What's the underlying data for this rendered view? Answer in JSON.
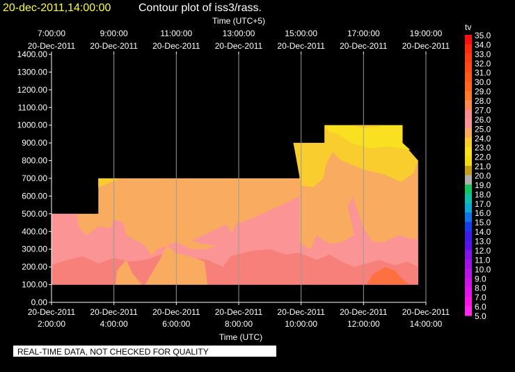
{
  "header": {
    "timestamp": "20-dec-2011,14:00:00",
    "title": "Contour plot of iss3/rass.",
    "timestamp_color": "#ffff33",
    "title_color": "#ffffff"
  },
  "top_axis": {
    "label": "Time (UTC+5)",
    "ticks": [
      {
        "hour": 7,
        "time": "7:00:00",
        "date": "20-Dec-2011"
      },
      {
        "hour": 9,
        "time": "9:00:00",
        "date": "20-Dec-2011"
      },
      {
        "hour": 11,
        "time": "11:00:00",
        "date": "20-Dec-2011"
      },
      {
        "hour": 13,
        "time": "13:00:00",
        "date": "20-Dec-2011"
      },
      {
        "hour": 15,
        "time": "15:00:00",
        "date": "20-Dec-2011"
      },
      {
        "hour": 17,
        "time": "17:00:00",
        "date": "20-Dec-2011"
      },
      {
        "hour": 19,
        "time": "19:00:00",
        "date": "20-Dec-2011"
      }
    ]
  },
  "bottom_axis": {
    "label": "Time (UTC)",
    "ticks": [
      {
        "hour": 2,
        "date": "20-Dec-2011",
        "time": "2:00:00"
      },
      {
        "hour": 4,
        "date": "20-Dec-2011",
        "time": "4:00:00"
      },
      {
        "hour": 6,
        "date": "20-Dec-2011",
        "time": "6:00:00"
      },
      {
        "hour": 8,
        "date": "20-Dec-2011",
        "time": "8:00:00"
      },
      {
        "hour": 10,
        "date": "20-Dec-2011",
        "time": "10:00:00"
      },
      {
        "hour": 12,
        "date": "20-Dec-2011",
        "time": "12:00:00"
      },
      {
        "hour": 14,
        "date": "20-Dec-2011",
        "time": "14:00:00"
      }
    ]
  },
  "y_axis": {
    "ticks": [
      "0.00",
      "100.00",
      "200.00",
      "300.00",
      "400.00",
      "500.00",
      "600.00",
      "700.00",
      "800.00",
      "900.00",
      "1000.00",
      "1100.00",
      "1200.00",
      "1300.00",
      "1400.00"
    ]
  },
  "colorbar": {
    "label": "tv",
    "levels": [
      "35.0",
      "34.0",
      "33.0",
      "32.0",
      "31.0",
      "30.0",
      "29.0",
      "28.0",
      "27.0",
      "26.0",
      "25.0",
      "24.0",
      "23.0",
      "22.0",
      "21.0",
      "20.0",
      "19.0",
      "18.0",
      "17.0",
      "16.0",
      "15.0",
      "14.0",
      "13.0",
      "12.0",
      "11.0",
      "10.0",
      "9.0",
      "8.0",
      "7.0",
      "6.0",
      "5.0"
    ],
    "colors": [
      "#ff1010",
      "#ff2a10",
      "#ff3c14",
      "#ff4a18",
      "#ff5a1a",
      "#ff661f",
      "#ff7a2a",
      "#fb8a52",
      "#fb8c8c",
      "#fb9494",
      "#f9ac60",
      "#f9cd2e",
      "#f9e020",
      "#f2dc15",
      "#c4a018",
      "#b0b0b0",
      "#17c460",
      "#10c0a8",
      "#0fa8d2",
      "#0f72e8",
      "#1a3ce8",
      "#3c1ce8",
      "#5a14e8",
      "#8214e8",
      "#a014e8",
      "#b814e8",
      "#d014e8",
      "#e414e8",
      "#ff14e8",
      "#ff28ec"
    ]
  },
  "footer": {
    "notice": "REAL-TIME DATA, NOT CHECKED FOR QUALITY"
  },
  "chart_data": {
    "type": "heatmap",
    "title": "Contour plot of iss3/rass.",
    "timestamp": "20-dec-2011,14:00:00",
    "xlabel": "Time (UTC)",
    "xlabel_top": "Time (UTC+5)",
    "ylabel": "",
    "xlim_hours_utc": [
      2,
      14
    ],
    "ylim": [
      0,
      1400
    ],
    "grid": true,
    "colorbar_label": "tv",
    "colorbar_range": [
      5.0,
      35.0
    ],
    "colors": {
      "c23": "#f9e020",
      "c24": "#f9cd2e",
      "c25": "#f9ac60",
      "c26": "#fb9494",
      "c27": "#f7807a",
      "c28": "#ff7040"
    },
    "regions": [
      {
        "level": "c25",
        "points": [
          [
            2,
            100
          ],
          [
            2,
            500
          ],
          [
            3.5,
            500
          ],
          [
            3.5,
            700
          ],
          [
            9.95,
            700
          ],
          [
            9.95,
            800
          ],
          [
            9.75,
            900
          ],
          [
            10.75,
            900
          ],
          [
            10.75,
            1000
          ],
          [
            13.25,
            1000
          ],
          [
            13.25,
            900
          ],
          [
            13.75,
            800
          ],
          [
            13.75,
            100
          ]
        ]
      },
      {
        "level": "c26",
        "points": [
          [
            2,
            100
          ],
          [
            2,
            500
          ],
          [
            2.8,
            500
          ],
          [
            2.9,
            420
          ],
          [
            3.1,
            380
          ],
          [
            3.3,
            400
          ],
          [
            3.5,
            430
          ],
          [
            3.9,
            420
          ],
          [
            4.0,
            470
          ],
          [
            4.3,
            450
          ],
          [
            4.4,
            380
          ],
          [
            4.8,
            340
          ],
          [
            5.0,
            320
          ],
          [
            5.2,
            260
          ],
          [
            5.4,
            300
          ],
          [
            6.0,
            340
          ],
          [
            6.5,
            300
          ],
          [
            7.0,
            300
          ],
          [
            7.5,
            340
          ],
          [
            7.75,
            380
          ],
          [
            7.9,
            440
          ],
          [
            8.5,
            480
          ],
          [
            9.0,
            520
          ],
          [
            9.5,
            560
          ],
          [
            9.95,
            600
          ],
          [
            9.95,
            100
          ]
        ]
      },
      {
        "level": "c26",
        "points": [
          [
            9.95,
            100
          ],
          [
            9.95,
            340
          ],
          [
            10.3,
            300
          ],
          [
            10.5,
            380
          ],
          [
            10.9,
            330
          ],
          [
            11.3,
            340
          ],
          [
            11.7,
            380
          ],
          [
            11.5,
            540
          ],
          [
            11.65,
            600
          ],
          [
            12.0,
            420
          ],
          [
            12.3,
            340
          ],
          [
            12.7,
            340
          ],
          [
            13.1,
            380
          ],
          [
            13.5,
            360
          ],
          [
            13.75,
            360
          ],
          [
            13.75,
            100
          ]
        ]
      },
      {
        "level": "c27",
        "points": [
          [
            2,
            100
          ],
          [
            2,
            210
          ],
          [
            2.5,
            240
          ],
          [
            3.0,
            260
          ],
          [
            3.5,
            220
          ],
          [
            4.0,
            250
          ],
          [
            4.5,
            230
          ],
          [
            5.0,
            240
          ],
          [
            5.2,
            250
          ],
          [
            5.5,
            270
          ],
          [
            6.0,
            230
          ],
          [
            6.5,
            250
          ],
          [
            7.0,
            240
          ],
          [
            7.5,
            200
          ],
          [
            7.75,
            260
          ],
          [
            8.4,
            290
          ],
          [
            9.0,
            300
          ],
          [
            9.5,
            270
          ],
          [
            9.95,
            280
          ],
          [
            10.5,
            240
          ],
          [
            10.9,
            270
          ],
          [
            11.3,
            230
          ],
          [
            11.7,
            200
          ],
          [
            12.1,
            220
          ],
          [
            12.5,
            240
          ],
          [
            13.0,
            210
          ],
          [
            13.4,
            230
          ],
          [
            13.75,
            200
          ],
          [
            13.75,
            100
          ]
        ]
      },
      {
        "level": "c28",
        "points": [
          [
            12.1,
            100
          ],
          [
            12.3,
            160
          ],
          [
            12.7,
            200
          ],
          [
            13.0,
            180
          ],
          [
            13.25,
            130
          ],
          [
            13.5,
            100
          ]
        ]
      },
      {
        "level": "c25",
        "points": [
          [
            4.05,
            100
          ],
          [
            4.1,
            180
          ],
          [
            4.4,
            240
          ],
          [
            4.6,
            160
          ],
          [
            4.9,
            100
          ]
        ]
      },
      {
        "level": "c25",
        "points": [
          [
            5.0,
            100
          ],
          [
            5.2,
            160
          ],
          [
            5.5,
            250
          ],
          [
            5.7,
            320
          ],
          [
            6.0,
            280
          ],
          [
            6.6,
            250
          ],
          [
            6.9,
            230
          ],
          [
            7.0,
            100
          ]
        ]
      },
      {
        "level": "c25",
        "points": [
          [
            3.5,
            700
          ],
          [
            4.1,
            700
          ],
          [
            3.6,
            660
          ],
          [
            3.5,
            650
          ]
        ]
      },
      {
        "level": "c24",
        "points": [
          [
            3.5,
            650
          ],
          [
            3.5,
            700
          ],
          [
            4.2,
            700
          ]
        ]
      },
      {
        "level": "c24",
        "points": [
          [
            9.75,
            900
          ],
          [
            10.75,
            900
          ],
          [
            10.75,
            1000
          ],
          [
            13.25,
            1000
          ],
          [
            13.25,
            900
          ],
          [
            13.75,
            800
          ],
          [
            13.6,
            730
          ],
          [
            13.2,
            680
          ],
          [
            12.7,
            720
          ],
          [
            12.0,
            750
          ],
          [
            11.3,
            800
          ],
          [
            11.0,
            850
          ],
          [
            10.8,
            780
          ],
          [
            10.7,
            700
          ],
          [
            10.4,
            650
          ],
          [
            10.0,
            660
          ]
        ]
      },
      {
        "level": "c23",
        "points": [
          [
            10.75,
            1000
          ],
          [
            13.25,
            1000
          ],
          [
            13.25,
            900
          ],
          [
            13.5,
            860
          ],
          [
            12.8,
            880
          ],
          [
            12.2,
            870
          ],
          [
            11.6,
            900
          ],
          [
            11.2,
            950
          ],
          [
            10.9,
            960
          ]
        ]
      },
      {
        "level": "c24",
        "points": [
          [
            11.7,
            1000
          ],
          [
            12.6,
            1000
          ],
          [
            12.5,
            990
          ],
          [
            12.0,
            985
          ],
          [
            11.8,
            990
          ]
        ]
      },
      {
        "level": "c26",
        "points": [
          [
            6.5,
            350
          ],
          [
            7.0,
            390
          ],
          [
            7.6,
            440
          ],
          [
            7.9,
            360
          ],
          [
            7.4,
            320
          ],
          [
            6.8,
            330
          ]
        ]
      }
    ]
  }
}
